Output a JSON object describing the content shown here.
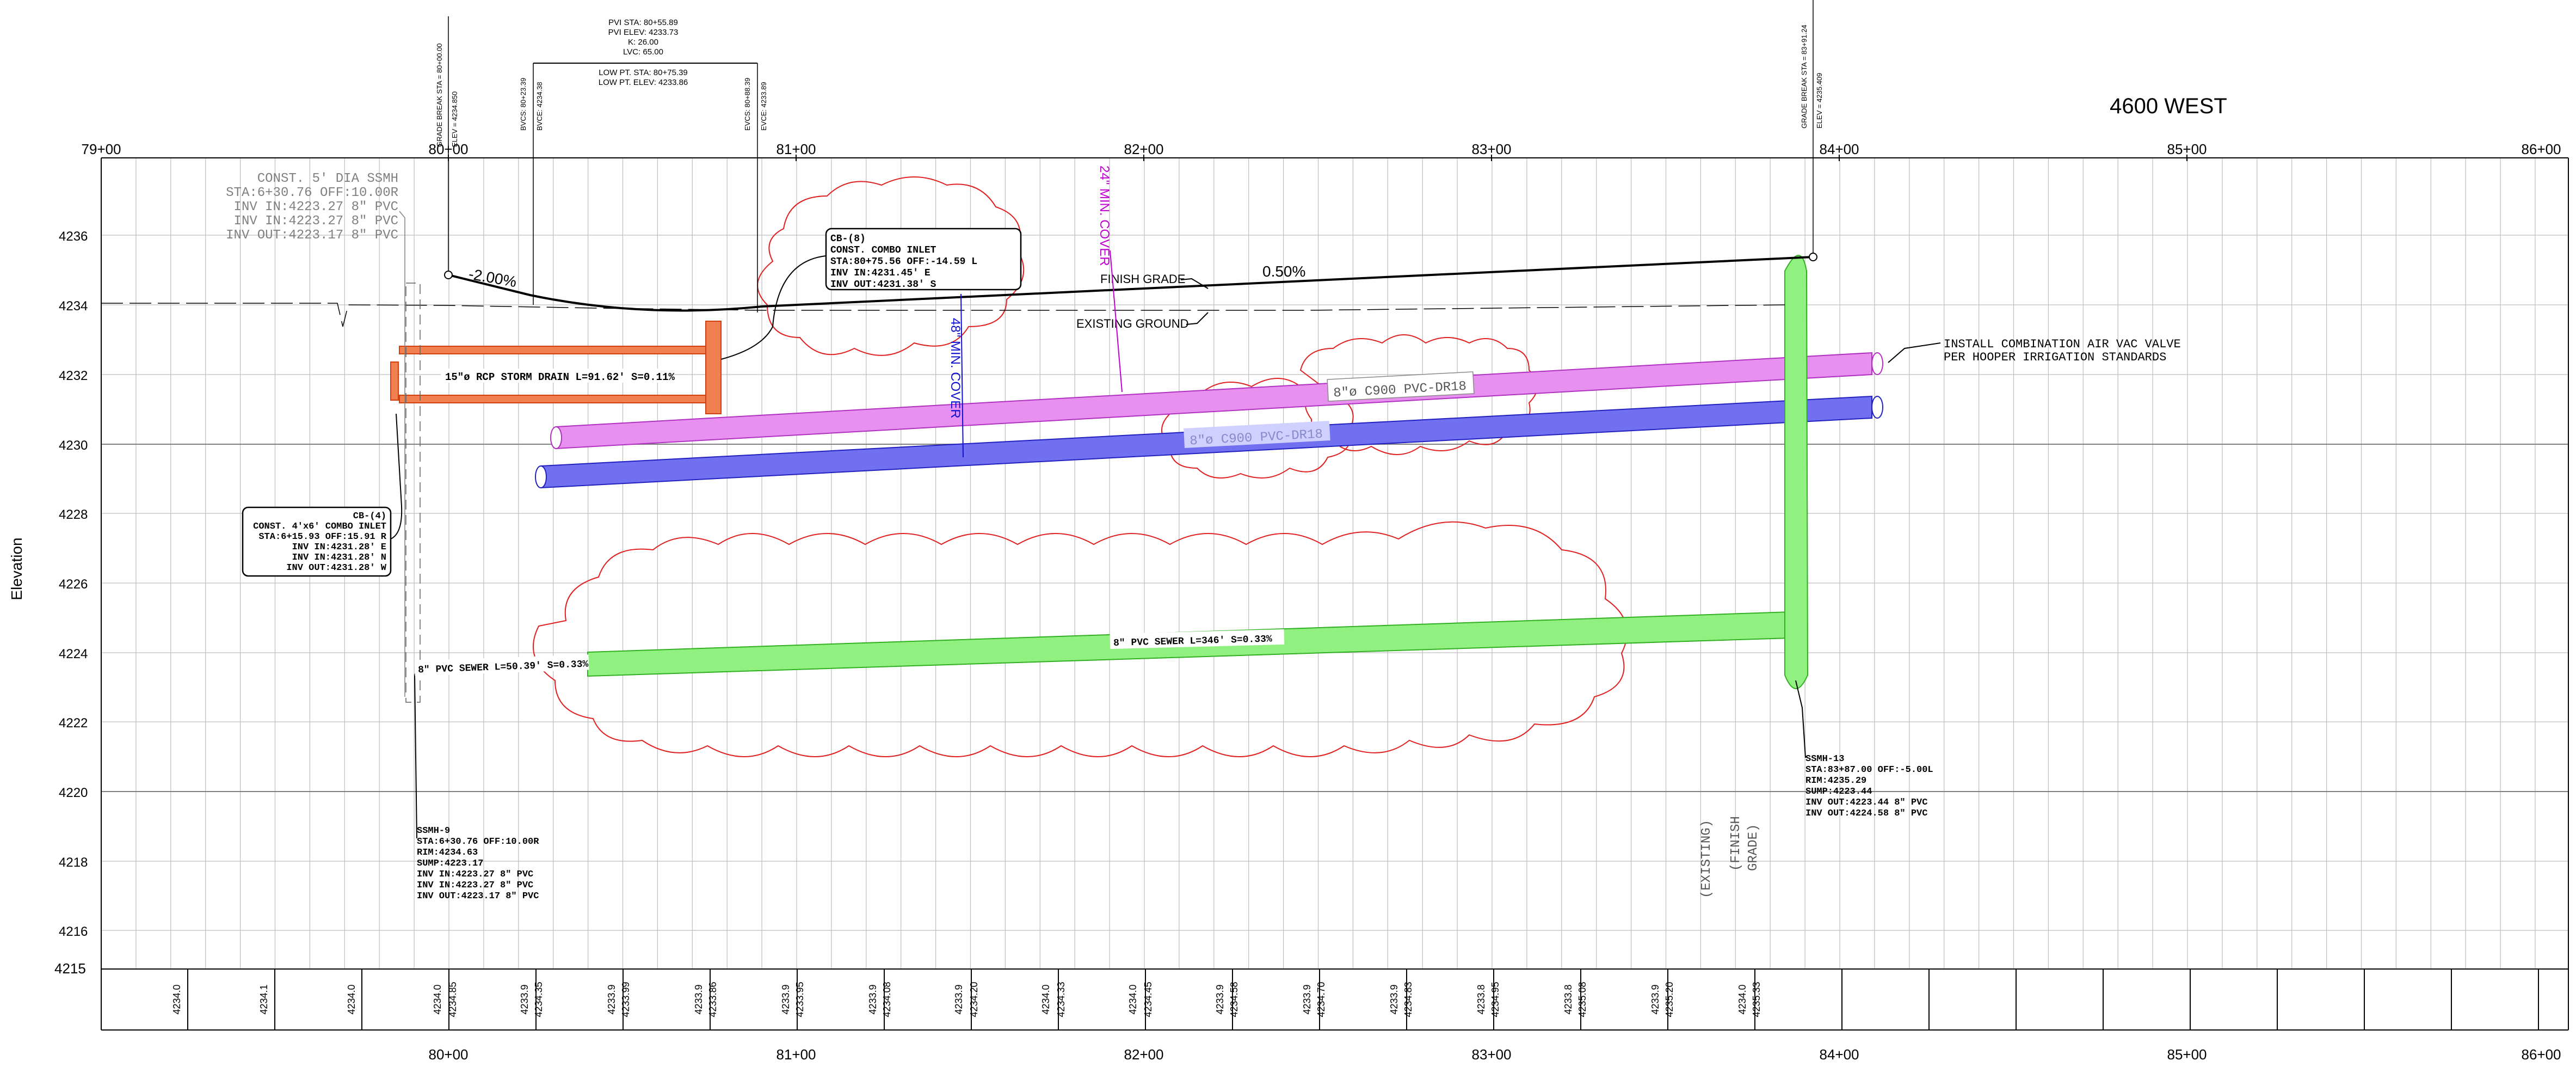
{
  "title": "4600 WEST",
  "y_axis_title": "Elevation",
  "station_labels": [
    "79+00",
    "80+00",
    "81+00",
    "82+00",
    "83+00",
    "84+00",
    "85+00",
    "86+00"
  ],
  "elevation_labels": [
    "4236",
    "4234",
    "4232",
    "4230",
    "4228",
    "4226",
    "4224",
    "4222",
    "4220",
    "4218",
    "4216",
    "4215"
  ],
  "grade_labels": {
    "left_slope": "-2.00%",
    "right_slope": "0.50%"
  },
  "vertical_curve": {
    "pvi_lines": [
      "PVI STA: 80+55.89",
      "PVI ELEV: 4233.73",
      "K: 26.00",
      "LVC: 65.00"
    ],
    "low_pt_lines": [
      "LOW PT. STA: 80+75.39",
      "LOW PT. ELEV: 4233.86"
    ],
    "bvcs": "BVCS: 80+23.39",
    "bvce": "BVCE: 4234.38",
    "evcs": "EVCS: 80+88.39",
    "evce": "EVCE: 4233.89",
    "gb_left_sta": "GRADE BREAK STA = 80+00.00",
    "gb_left_elev": "ELEV = 4234.850",
    "gb_right_sta": "GRADE BREAK STA = 83+91.24",
    "gb_right_elev": "ELEV = 4235.409"
  },
  "notes": {
    "ssmh_const": [
      "CONST. 5' DIA SSMH",
      "STA:6+30.76  OFF:10.00R",
      "INV  IN:4223.27  8\" PVC",
      "INV  IN:4223.27  8\" PVC",
      "INV  OUT:4223.17  8\" PVC"
    ],
    "cb8": [
      "CB-(8)",
      "CONST. COMBO INLET",
      "STA:80+75.56  OFF:-14.59  L",
      "INV  IN:4231.45' E",
      "INV  OUT:4231.38' S"
    ],
    "cb4": [
      "CB-(4)",
      "CONST. 4'x6' COMBO INLET",
      "STA:6+15.93  OFF:15.91  R",
      "INV  IN:4231.28' E",
      "INV  IN:4231.28' N",
      "INV  OUT:4231.28' W"
    ],
    "ssmh9": [
      "SSMH-9",
      "STA:6+30.76  OFF:10.00R",
      "RIM:4234.63",
      "SUMP:4223.17",
      "INV  IN:4223.27  8\" PVC",
      "INV  IN:4223.27  8\" PVC",
      "INV  OUT:4223.17  8\" PVC"
    ],
    "ssmh13": [
      "SSMH-13",
      "STA:83+87.00  OFF:-5.00L",
      "RIM:4235.29",
      "SUMP:4223.44",
      "INV  OUT:4223.44  8\" PVC",
      "INV  OUT:4224.58  8\" PVC"
    ],
    "air_vac": [
      "INSTALL  COMBINATION  AIR  VAC  VALVE",
      "PER  HOOPER  IRRIGATION  STANDARDS"
    ],
    "finish_grade": "FINISH GRADE",
    "existing_ground": "EXISTING GROUND",
    "min_cover_24": "24\" MIN. COVER",
    "min_cover_48": "48\" MIN. COVER",
    "storm_drain": "15\"ø RCP STORM DRAIN  L=91.62'  S=0.11%",
    "pvc_top": "8\"ø C900  PVC-DR18",
    "pvc_mid": "8\"ø C900  PVC-DR18",
    "sewer_left": "8\" PVC SEWER  L=50.39'  S=0.33%",
    "sewer_right": "8\" PVC SEWER  L=346'  S=0.33%",
    "existing_label": "(EXISTING)",
    "finish_label": "(FINISH",
    "grade_label": "GRADE)"
  },
  "bottom_elevations": [
    {
      "value": "4234.0"
    },
    {
      "value": "4234.1"
    },
    {
      "value": "4234.0"
    },
    {
      "value": "4234.0"
    },
    {
      "value": "4234.85"
    },
    {
      "value": "4233.9"
    },
    {
      "value": "4234.35"
    },
    {
      "value": "4233.9"
    },
    {
      "value": "4233.99"
    },
    {
      "value": "4233.9"
    },
    {
      "value": "4233.86"
    },
    {
      "value": "4233.9"
    },
    {
      "value": "4233.95"
    },
    {
      "value": "4233.9"
    },
    {
      "value": "4234.08"
    },
    {
      "value": "4233.9"
    },
    {
      "value": "4234.20"
    },
    {
      "value": "4234.0"
    },
    {
      "value": "4234.33"
    },
    {
      "value": "4234.0"
    },
    {
      "value": "4234.45"
    },
    {
      "value": "4233.9"
    },
    {
      "value": "4234.58"
    },
    {
      "value": "4233.9"
    },
    {
      "value": "4234.70"
    },
    {
      "value": "4233.9"
    },
    {
      "value": "4234.83"
    },
    {
      "value": "4233.8"
    },
    {
      "value": "4234.95"
    },
    {
      "value": "4233.8"
    },
    {
      "value": "4235.08"
    },
    {
      "value": "4233.9"
    },
    {
      "value": "4235.20"
    },
    {
      "value": "4234.0"
    },
    {
      "value": "4235.33"
    }
  ],
  "colors": {
    "storm": "#f08050",
    "storm_stroke": "#d04010",
    "pvc_top": "#e890f0",
    "pvc_top_stroke": "#b030c0",
    "pvc_mid": "#7070f0",
    "pvc_mid_stroke": "#2020c0",
    "sewer": "#90f080",
    "sewer_stroke": "#30b020",
    "cloud": "#e02020",
    "magenta": "#c000d0",
    "blue": "#1010d0"
  }
}
